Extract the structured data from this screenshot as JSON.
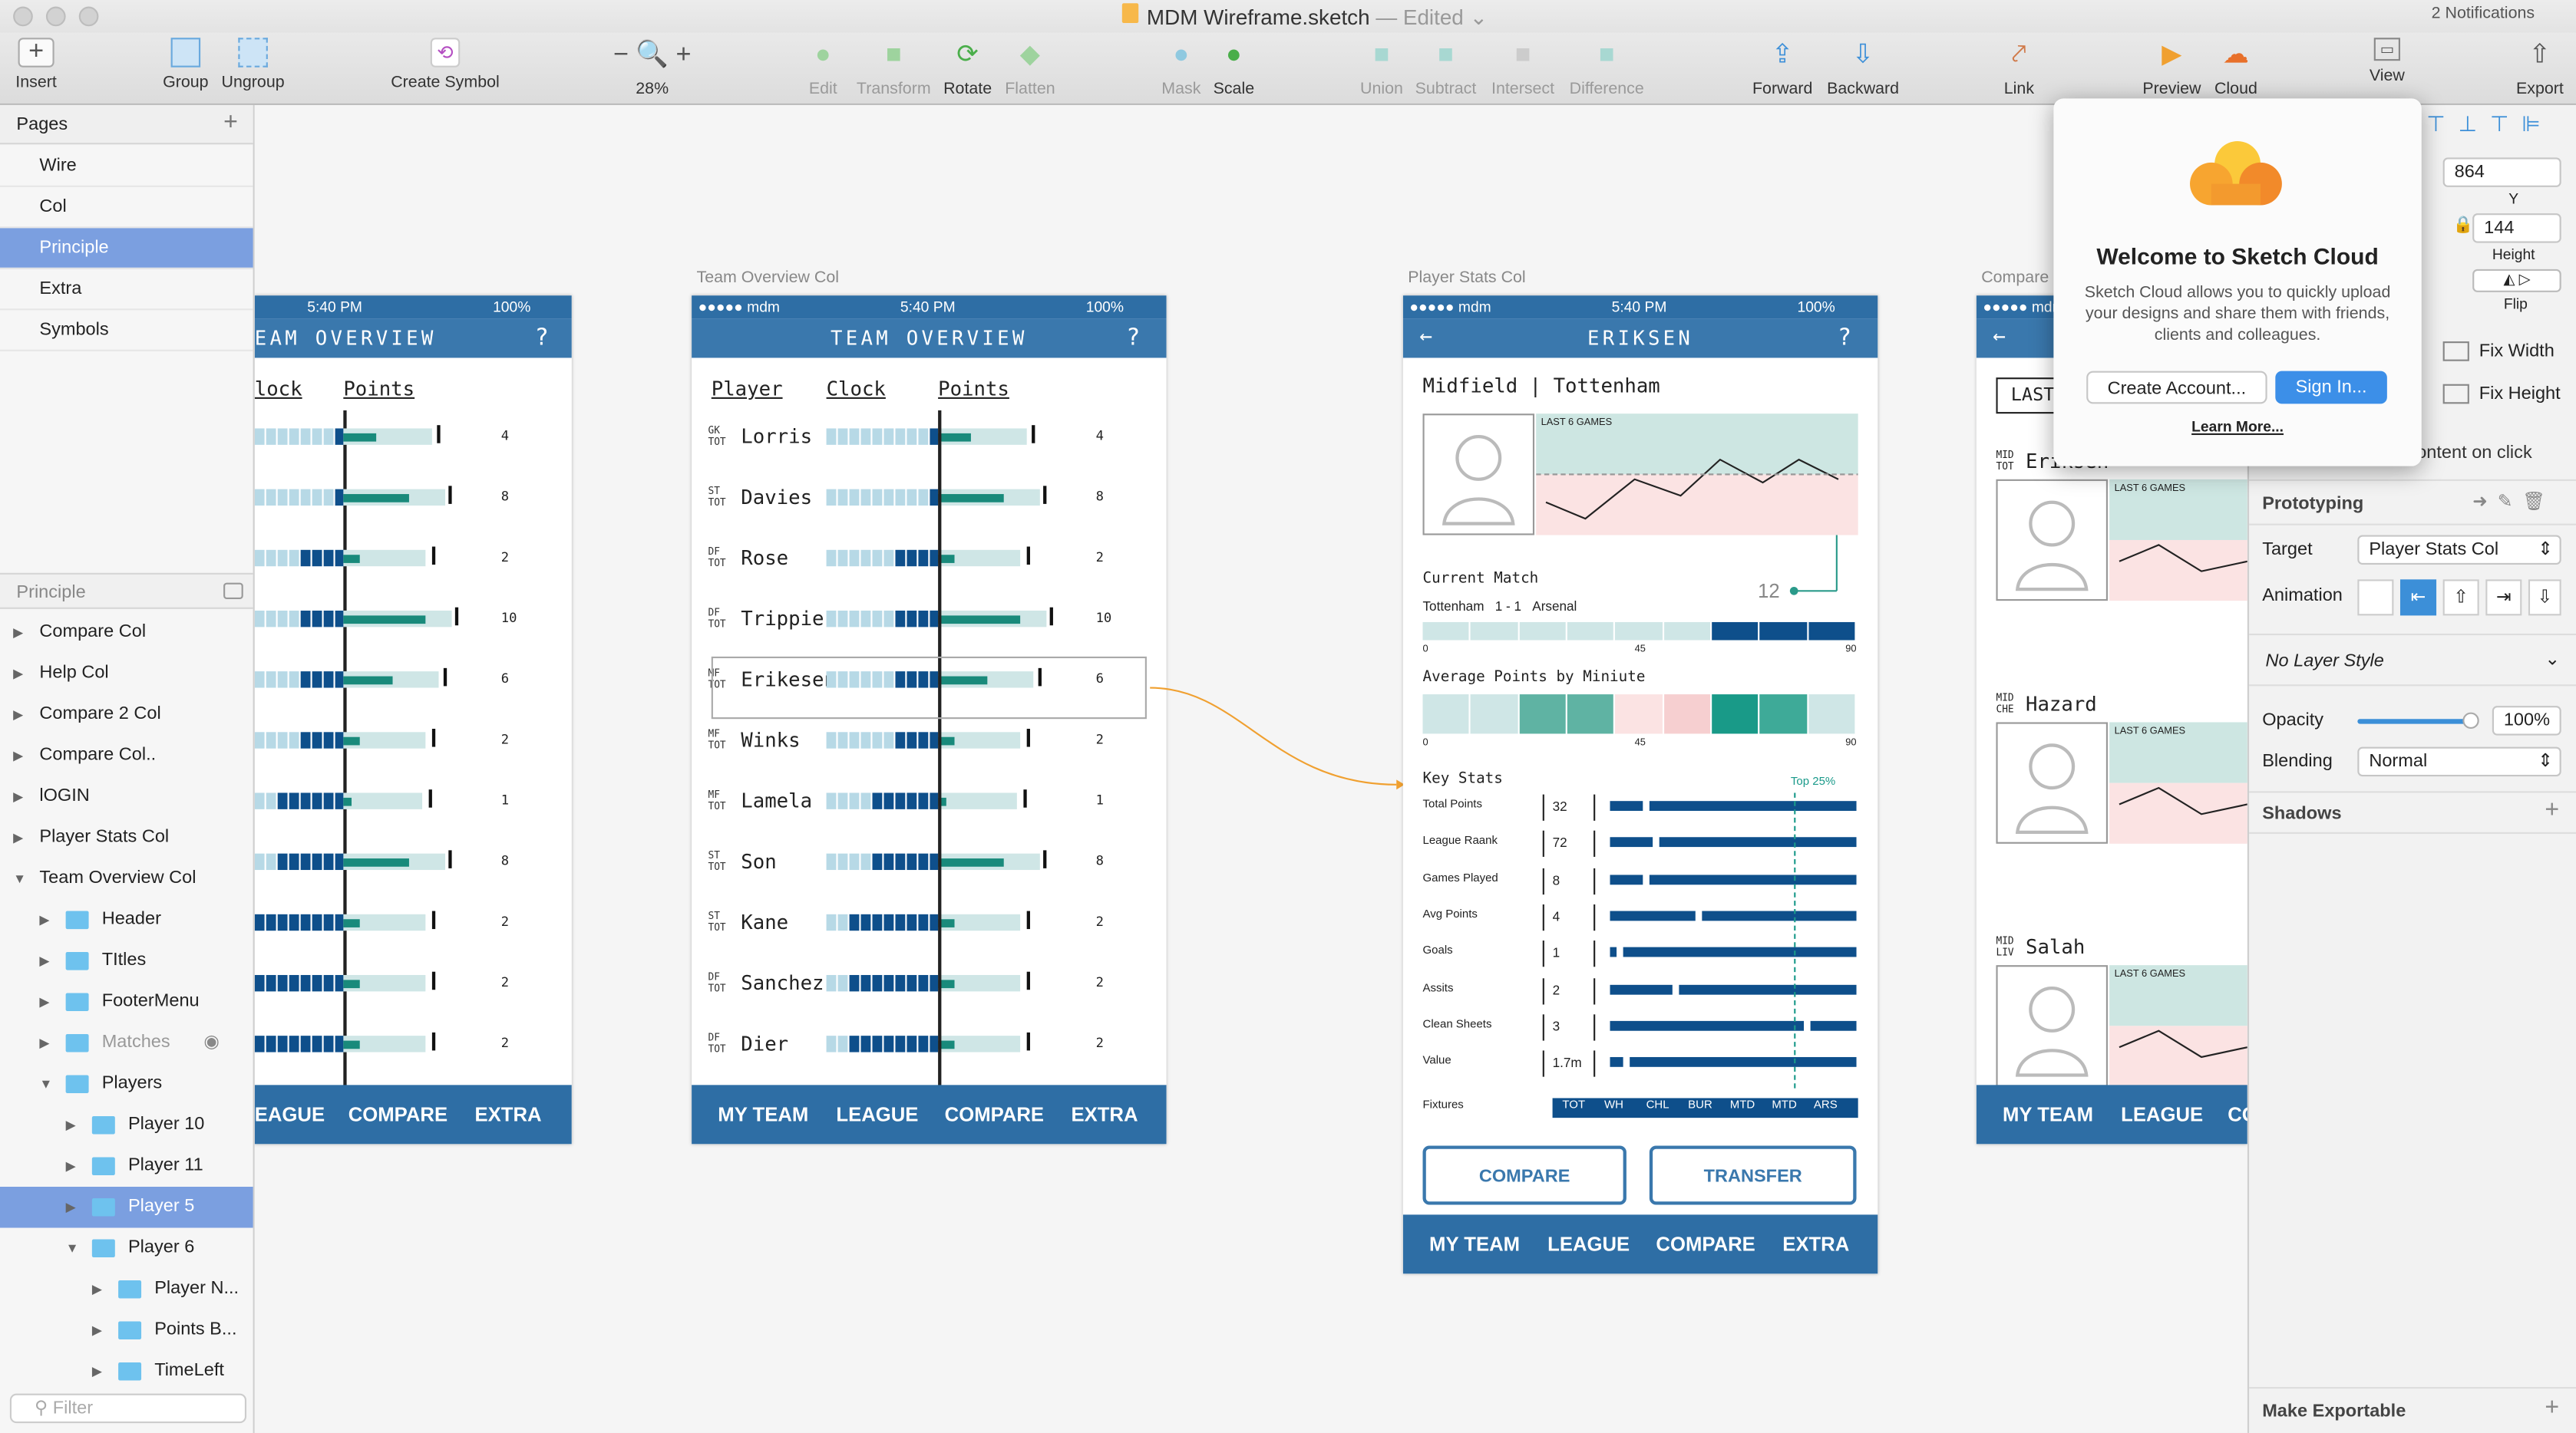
{
  "window": {
    "title": "MDM Wireframe.sketch",
    "edited": "— Edited",
    "notifications": "2 Notifications"
  },
  "toolbar": {
    "insert": "Insert",
    "group": "Group",
    "ungroup": "Ungroup",
    "create_symbol": "Create Symbol",
    "zoom": "28%",
    "edit": "Edit",
    "transform": "Transform",
    "rotate": "Rotate",
    "flatten": "Flatten",
    "mask": "Mask",
    "scale": "Scale",
    "union": "Union",
    "subtract": "Subtract",
    "intersect": "Intersect",
    "difference": "Difference",
    "forward": "Forward",
    "backward": "Backward",
    "link": "Link",
    "preview": "Preview",
    "cloud": "Cloud",
    "view": "View",
    "export": "Export"
  },
  "sidebar": {
    "pages_title": "Pages",
    "pages": [
      "Wire",
      "Col",
      "Principle",
      "Extra",
      "Symbols"
    ],
    "selected_page": "Principle",
    "layers_title": "Principle",
    "filter_placeholder": "Filter",
    "layers": [
      {
        "label": "Compare Col",
        "indent": 0,
        "open": false
      },
      {
        "label": "Help Col",
        "indent": 0,
        "open": false
      },
      {
        "label": "Compare 2 Col",
        "indent": 0,
        "open": false
      },
      {
        "label": "Compare Col..",
        "indent": 0,
        "open": false
      },
      {
        "label": "lOGIN",
        "indent": 0,
        "open": false
      },
      {
        "label": "Player Stats Col",
        "indent": 0,
        "open": false
      },
      {
        "label": "Team Overview Col",
        "indent": 0,
        "open": true
      },
      {
        "label": "Header",
        "indent": 1,
        "open": false,
        "folder": true
      },
      {
        "label": "TItles",
        "indent": 1,
        "open": false,
        "folder": true
      },
      {
        "label": "FooterMenu",
        "indent": 1,
        "open": false,
        "folder": true
      },
      {
        "label": "Matches",
        "indent": 1,
        "open": false,
        "folder": true,
        "hidden": true
      },
      {
        "label": "Players",
        "indent": 1,
        "open": true,
        "folder": true
      },
      {
        "label": "Player 10",
        "indent": 2,
        "open": false,
        "folder": true
      },
      {
        "label": "Player 11",
        "indent": 2,
        "open": false,
        "folder": true
      },
      {
        "label": "Player 5",
        "indent": 2,
        "open": false,
        "folder": true,
        "selected": true
      },
      {
        "label": "Player 6",
        "indent": 2,
        "open": true,
        "folder": true
      },
      {
        "label": "Player N...",
        "indent": 3,
        "open": false,
        "folder": true
      },
      {
        "label": "Points B...",
        "indent": 3,
        "open": false,
        "folder": true
      },
      {
        "label": "TimeLeft",
        "indent": 3,
        "open": false,
        "folder": true
      }
    ]
  },
  "status": {
    "carrier": "●●●●● mdm",
    "time": "5:40 PM",
    "battery": "100%"
  },
  "team_overview": {
    "label": "Team Overview Col",
    "title": "TEAM OVERVIEW",
    "help": "?",
    "col_player": "Player",
    "col_clock": "Clock",
    "col_points": "Points",
    "players": [
      {
        "pos1": "GK",
        "pos2": "TOT",
        "name": "Lorris",
        "clock": 1,
        "points": 4
      },
      {
        "pos1": "ST",
        "pos2": "TOT",
        "name": "Davies",
        "clock": 1,
        "points": 8
      },
      {
        "pos1": "DF",
        "pos2": "TOT",
        "name": "Rose",
        "clock": 4,
        "points": 2
      },
      {
        "pos1": "DF",
        "pos2": "TOT",
        "name": "Trippier",
        "clock": 4,
        "points": 10
      },
      {
        "pos1": "MF",
        "pos2": "TOT",
        "name": "Erikesen",
        "clock": 4,
        "points": 6
      },
      {
        "pos1": "MF",
        "pos2": "TOT",
        "name": "Winks",
        "clock": 4,
        "points": 2
      },
      {
        "pos1": "MF",
        "pos2": "TOT",
        "name": "Lamela",
        "clock": 6,
        "points": 1
      },
      {
        "pos1": "ST",
        "pos2": "TOT",
        "name": "Son",
        "clock": 6,
        "points": 8
      },
      {
        "pos1": "ST",
        "pos2": "TOT",
        "name": "Kane",
        "clock": 8,
        "points": 2
      },
      {
        "pos1": "DF",
        "pos2": "TOT",
        "name": "Sanchez",
        "clock": 8,
        "points": 2
      },
      {
        "pos1": "DF",
        "pos2": "TOT",
        "name": "Dier",
        "clock": 8,
        "points": 2
      }
    ],
    "footer": [
      "MY TEAM",
      "LEAGUE",
      "COMPARE",
      "EXTRA"
    ],
    "left_footer": [
      "EAGUE",
      "COMPARE",
      "EXTRA"
    ],
    "left_title": "EAM OVERVIEW",
    "left_col_clock": "lock"
  },
  "player_stats": {
    "label": "Player Stats Col",
    "title": "ERIKSEN",
    "help": "?",
    "subtitle": "Midfield | Tottenham",
    "last6": "LAST 6 GAMES",
    "current_match": "Current Match",
    "home": "Tottenham",
    "score": "1 - 1",
    "away": "Arsenal",
    "current_pts": "12",
    "avg_title": "Average Points by Miniute",
    "axis": [
      "0",
      "45",
      "90"
    ],
    "key_stats": "Key Stats",
    "top": "Top 25%",
    "stats": [
      {
        "label": "Total Points",
        "value": "32"
      },
      {
        "label": "League Raank",
        "value": "72"
      },
      {
        "label": "Games Played",
        "value": "8"
      },
      {
        "label": "Avg Points",
        "value": "4"
      },
      {
        "label": "Goals",
        "value": "1"
      },
      {
        "label": "Assits",
        "value": "2"
      },
      {
        "label": "Clean Sheets",
        "value": "3"
      },
      {
        "label": "Value",
        "value": "1.7m"
      }
    ],
    "fixtures_label": "Fixtures",
    "fixtures": [
      "TOT",
      "WH",
      "CHL",
      "BUR",
      "MTD",
      "MTD",
      "ARS"
    ],
    "compare_btn": "COMPARE",
    "transfer_btn": "TRANSFER",
    "footer": [
      "MY TEAM",
      "LEAGUE",
      "COMPARE",
      "EXTRA"
    ]
  },
  "compare": {
    "label": "Compare",
    "search": "LAST",
    "players": [
      {
        "pos1": "MID",
        "pos2": "TOT",
        "name": "Eriksen"
      },
      {
        "pos1": "MID",
        "pos2": "CHE",
        "name": "Hazard"
      },
      {
        "pos1": "MID",
        "pos2": "LIV",
        "name": "Salah"
      }
    ],
    "last6": "LAST 6 GAMES",
    "footer": [
      "MY TEAM",
      "LEAGUE",
      "CO"
    ]
  },
  "popover": {
    "title": "Welcome to Sketch Cloud",
    "body": "Sketch Cloud allows you to quickly upload your designs and share them with friends, clients and colleagues.",
    "create": "Create Account...",
    "signin": "Sign In...",
    "learn": "Learn More..."
  },
  "inspector": {
    "y_value": "864",
    "y_label": "Y",
    "height_value": "144",
    "height_label": "Height",
    "flip": "Flip",
    "fix_width": "Fix Width",
    "fix_height": "Fix Height",
    "click_hint": "Select group's content on click",
    "prototyping": "Prototyping",
    "target_label": "Target",
    "target_value": "Player Stats Col",
    "animation_label": "Animation",
    "layer_style": "No Layer Style",
    "opacity_label": "Opacity",
    "opacity_value": "100%",
    "blending_label": "Blending",
    "blending_value": "Normal",
    "shadows": "Shadows",
    "exportable": "Make Exportable"
  },
  "colors": {
    "accent": "#3a78ad",
    "dark_blue": "#0e4f8b",
    "teal": "#198a7b",
    "light_teal": "#cfe6e6",
    "selection": "#7b9fe0",
    "prototype_link": "#f0a030"
  }
}
